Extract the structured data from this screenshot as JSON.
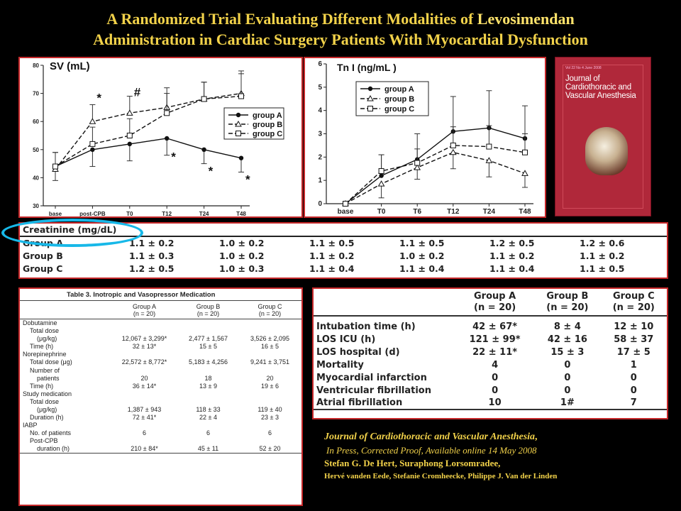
{
  "title": {
    "line1_pre": "A Randomized Trial Evaluating Different Modalities of ",
    "line1_highlight": "Levosimendan",
    "line2": "Administration in Cardiac Surgery Patients With Myocardial Dysfunction"
  },
  "colors": {
    "title": "#f2d24a",
    "panel_border": "#c6282a",
    "highlight_oval": "#17b8e8",
    "cover": "#b0283a"
  },
  "chart_data": [
    {
      "type": "line",
      "title": "SV (mL)",
      "categories": [
        "base",
        "post-CPB",
        "T0",
        "T12",
        "T24",
        "T48"
      ],
      "ylim": [
        30,
        80
      ],
      "yticks": [
        "30",
        "40",
        "50",
        "60",
        "70",
        "80"
      ],
      "legend_position": "right",
      "series": [
        {
          "name": "group A",
          "style": "solid-dot",
          "values": [
            44,
            50,
            52,
            54,
            50,
            47
          ],
          "err": [
            5,
            6,
            6,
            6,
            5,
            5
          ]
        },
        {
          "name": "group B",
          "style": "dash-triangle",
          "values": [
            43,
            60,
            63,
            65,
            68,
            70
          ],
          "err": [
            6,
            6,
            6,
            7,
            6,
            8
          ]
        },
        {
          "name": "group C",
          "style": "dash-square",
          "values": [
            44,
            52,
            55,
            63,
            68,
            69
          ],
          "err": [
            5,
            6,
            6,
            7,
            6,
            8
          ]
        }
      ],
      "annotations": [
        {
          "text": "*",
          "x": "post-CPB",
          "y": 67
        },
        {
          "text": "#",
          "x": "T0",
          "y": 69
        },
        {
          "text": "*",
          "x": "T12",
          "y": 46
        },
        {
          "text": "*",
          "x": "T24",
          "y": 41
        },
        {
          "text": "*",
          "x": "T48",
          "y": 38
        }
      ]
    },
    {
      "type": "line",
      "title": "Tn I (ng/mL )",
      "categories": [
        "base",
        "T0",
        "T6",
        "T12",
        "T24",
        "T48"
      ],
      "ylim": [
        0,
        6
      ],
      "yticks": [
        "0",
        "1",
        "2",
        "3",
        "4",
        "5",
        "6"
      ],
      "legend_position": "top-left",
      "series": [
        {
          "name": "group A",
          "style": "solid-dot",
          "values": [
            0,
            1.2,
            1.9,
            3.1,
            3.25,
            2.8
          ],
          "err": [
            0,
            0.9,
            1.1,
            1.5,
            1.6,
            1.4
          ]
        },
        {
          "name": "group B",
          "style": "dash-triangle",
          "values": [
            0,
            0.85,
            1.55,
            2.2,
            1.85,
            1.3
          ],
          "err": [
            0,
            0.6,
            0.5,
            0.7,
            0.7,
            0.6
          ]
        },
        {
          "name": "group C",
          "style": "dash-square",
          "values": [
            0,
            1.4,
            1.75,
            2.5,
            2.45,
            2.2
          ],
          "err": [
            0,
            0.7,
            0.6,
            0.8,
            0.9,
            0.8
          ]
        }
      ]
    }
  ],
  "cover": {
    "top": "Vol 22  No 4     June 2008",
    "title": "Journal of Cardiothoracic and Vascular Anesthesia"
  },
  "creatinine": {
    "header": "Creatinine (mg/dL)",
    "rows": [
      {
        "label": "Group A",
        "values": [
          "1.1 ± 0.2",
          "1.0 ± 0.2",
          "1.1 ± 0.5",
          "1.1 ± 0.5",
          "1.2 ± 0.5",
          "1.2 ± 0.6"
        ]
      },
      {
        "label": "Group B",
        "values": [
          "1.1 ± 0.3",
          "1.0 ± 0.2",
          "1.1 ± 0.2",
          "1.0 ± 0.2",
          "1.1 ± 0.2",
          "1.1 ± 0.2"
        ]
      },
      {
        "label": "Group C",
        "values": [
          "1.2 ± 0.5",
          "1.0 ± 0.3",
          "1.1 ± 0.4",
          "1.1 ± 0.4",
          "1.1 ± 0.4",
          "1.1 ± 0.5"
        ]
      }
    ]
  },
  "table3": {
    "caption": "Table 3.  Inotropic and Vasopressor Medication",
    "headers": [
      "",
      "Group A\n(n = 20)",
      "Group B\n(n = 20)",
      "Group C\n(n = 20)"
    ],
    "head_a": [
      "Group A",
      "(n = 20)"
    ],
    "head_b": [
      "Group B",
      "(n = 20)"
    ],
    "head_c": [
      "Group C",
      "(n = 20)"
    ],
    "rows": [
      {
        "label": "Dobutamine",
        "indent": 0,
        "a": "",
        "b": "",
        "c": ""
      },
      {
        "label": "Total dose",
        "indent": 1,
        "a": "",
        "b": "",
        "c": ""
      },
      {
        "label": "(μg/kg)",
        "indent": 2,
        "a": "12,067 ± 3,299*",
        "b": "2,477 ± 1,567",
        "c": "3,526 ± 2,095"
      },
      {
        "label": "Time (h)",
        "indent": 1,
        "a": "32 ± 13*",
        "b": "15 ± 5",
        "c": "16 ± 5"
      },
      {
        "label": "Norepinephrine",
        "indent": 0,
        "a": "",
        "b": "",
        "c": ""
      },
      {
        "label": "Total dose (μg)",
        "indent": 1,
        "a": "22,572 ± 8,772*",
        "b": "5,183 ± 4,256",
        "c": "9,241 ± 3,751"
      },
      {
        "label": "Number of",
        "indent": 1,
        "a": "",
        "b": "",
        "c": ""
      },
      {
        "label": "patients",
        "indent": 2,
        "a": "20",
        "b": "18",
        "c": "20"
      },
      {
        "label": "Time (h)",
        "indent": 1,
        "a": "36 ± 14*",
        "b": "13 ± 9",
        "c": "19 ± 6"
      },
      {
        "label": "Study medication",
        "indent": 0,
        "a": "",
        "b": "",
        "c": ""
      },
      {
        "label": "Total dose",
        "indent": 1,
        "a": "",
        "b": "",
        "c": ""
      },
      {
        "label": "(μg/kg)",
        "indent": 2,
        "a": "1,387 ± 943",
        "b": "118 ± 33",
        "c": "119 ± 40"
      },
      {
        "label": "Duration (h)",
        "indent": 1,
        "a": "72 ± 41*",
        "b": "22 ± 4",
        "c": "23 ± 3"
      },
      {
        "label": "IABP",
        "indent": 0,
        "a": "",
        "b": "",
        "c": ""
      },
      {
        "label": "No. of patients",
        "indent": 1,
        "a": "6",
        "b": "6",
        "c": "6"
      },
      {
        "label": "Post-CPB",
        "indent": 1,
        "a": "",
        "b": "",
        "c": ""
      },
      {
        "label": "duration (h)",
        "indent": 2,
        "a": "210 ± 84*",
        "b": "45 ± 11",
        "c": "52 ± 20"
      }
    ]
  },
  "table4": {
    "head_a": [
      "Group A",
      "(n = 20)"
    ],
    "head_b": [
      "Group B",
      "(n = 20)"
    ],
    "head_c": [
      "Group C",
      "(n = 20)"
    ],
    "rows": [
      {
        "label": "Intubation time (h)",
        "a": "42 ± 67*",
        "b": "8 ± 4",
        "c": "12 ± 10"
      },
      {
        "label": "LOS ICU (h)",
        "a": "121 ± 99*",
        "b": "42 ± 16",
        "c": "58 ± 37"
      },
      {
        "label": "LOS hospital (d)",
        "a": "22 ± 11*",
        "b": "15 ± 3",
        "c": "17 ± 5"
      },
      {
        "label": "Mortality",
        "a": "4",
        "b": "0",
        "c": "1"
      },
      {
        "label": "Myocardial infarction",
        "a": "0",
        "b": "0",
        "c": "0"
      },
      {
        "label": "Ventricular fibrillation",
        "a": "0",
        "b": "0",
        "c": "0"
      },
      {
        "label": "Atrial fibrillation",
        "a": "10",
        "b": "1#",
        "c": "7"
      }
    ]
  },
  "citation": {
    "journal": "Journal of Cardiothoracic and Vascular Anesthesia",
    "journal_suffix": ",",
    "press": "In Press, Corrected Proof, Available online 14 May 2008",
    "authors1": "Stefan G. De Hert, Suraphong Lorsomradee,",
    "authors2": "Hervé vanden Eede, Stefanie Cromheecke, Philippe J. Van der Linden"
  }
}
